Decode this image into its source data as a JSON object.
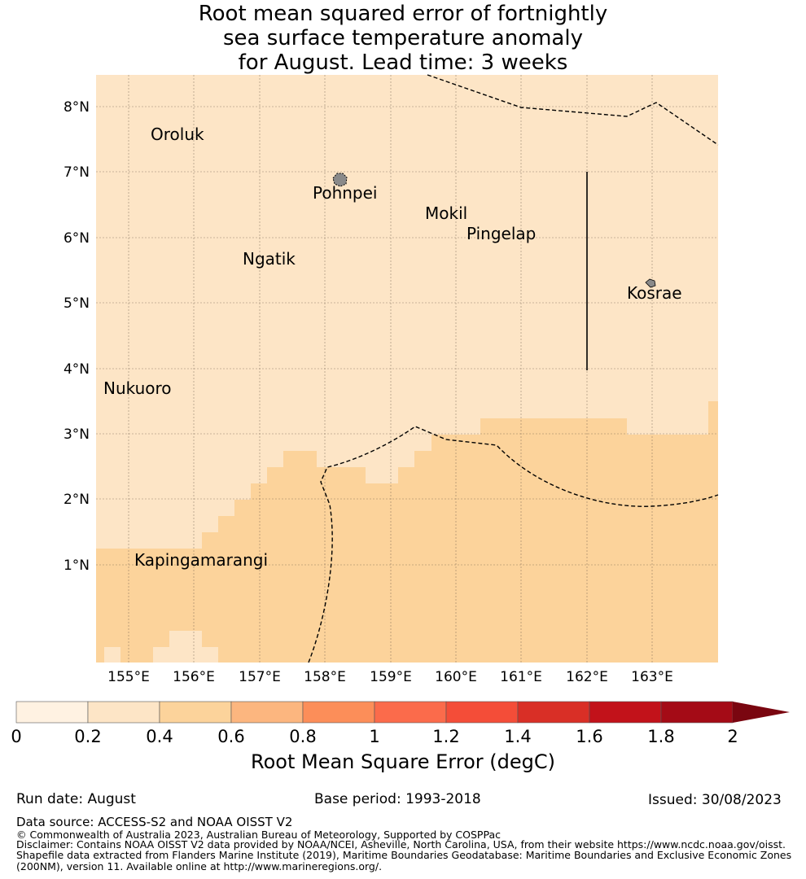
{
  "title": {
    "line1": "Root mean squared error of fortnightly",
    "line2": "sea surface temperature anomaly",
    "line3": "for August. Lead time: 3 weeks"
  },
  "map": {
    "lon_labels": [
      "155°E",
      "156°E",
      "157°E",
      "158°E",
      "159°E",
      "160°E",
      "161°E",
      "162°E",
      "163°E"
    ],
    "lat_labels": [
      "1°N",
      "2°N",
      "3°N",
      "4°N",
      "5°N",
      "6°N",
      "7°N",
      "8°N"
    ],
    "places": [
      {
        "name": "Oroluk"
      },
      {
        "name": "Pohnpei"
      },
      {
        "name": "Mokil"
      },
      {
        "name": "Pingelap"
      },
      {
        "name": "Ngatik"
      },
      {
        "name": "Kosrae"
      },
      {
        "name": "Nukuoro"
      },
      {
        "name": "Kapingamarangi"
      }
    ],
    "colors": {
      "bin_0_2_0_4": "#fde5c6",
      "bin_0_4_0_6": "#fcd39b",
      "bin_0_0_0_2": "#fff2e2"
    }
  },
  "colorbar": {
    "label": "Root Mean Square Error (degC)",
    "ticks": [
      "0",
      "0.2",
      "0.4",
      "0.6",
      "0.8",
      "1",
      "1.2",
      "1.4",
      "1.6",
      "1.8",
      "2"
    ],
    "colors": [
      "#fff2e2",
      "#fde5c6",
      "#fcd39b",
      "#fcb67f",
      "#fc8e59",
      "#fb6b4b",
      "#f44d38",
      "#d92f26",
      "#c2121a",
      "#a40b16",
      "#7a0610"
    ]
  },
  "footer": {
    "run_date": "Run date: August",
    "base_period": "Base period: 1993-2018",
    "issued": "Issued: 30/08/2023",
    "data_source": "Data source: ACCESS-S2 and NOAA OISST V2",
    "copyright": "© Commonwealth of Australia 2023, Australian Bureau of Meteorology, Supported by COSPPac",
    "disclaimer1": "Disclaimer: Contains NOAA OISST V2 data provided by NOAA/NCEI, Asheville, North Carolina, USA, from their website https://www.ncdc.noaa.gov/oisst.",
    "disclaimer2": "Shapefile data extracted from Flanders Marine Institute (2019), Maritime Boundaries Geodatabase: Maritime Boundaries and Exclusive Economic Zones",
    "disclaimer3": "(200NM), version 11. Available online at http://www.marineregions.org/."
  }
}
